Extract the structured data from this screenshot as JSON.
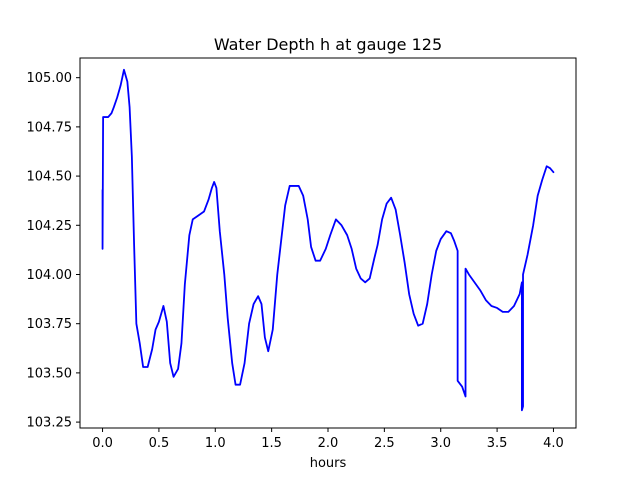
{
  "chart_data": {
    "type": "line",
    "title": "Water Depth h at gauge 125",
    "xlabel": "hours",
    "ylabel": "",
    "xlim": [
      -0.2,
      4.2
    ],
    "ylim": [
      103.22,
      105.1
    ],
    "xticks": [
      0.0,
      0.5,
      1.0,
      1.5,
      2.0,
      2.5,
      3.0,
      3.5,
      4.0
    ],
    "xtick_labels": [
      "0.0",
      "0.5",
      "1.0",
      "1.5",
      "2.0",
      "2.5",
      "3.0",
      "3.5",
      "4.0"
    ],
    "yticks": [
      103.25,
      103.5,
      103.75,
      104.0,
      104.25,
      104.5,
      104.75,
      105.0
    ],
    "ytick_labels": [
      "103.25",
      "103.50",
      "103.75",
      "104.00",
      "104.25",
      "104.50",
      "104.75",
      "105.00"
    ],
    "grid": false,
    "legend": "none",
    "series": [
      {
        "color": "#0000ff",
        "points": [
          [
            0.0,
            104.43
          ],
          [
            0.0,
            104.13
          ],
          [
            0.005,
            104.8
          ],
          [
            0.05,
            104.8
          ],
          [
            0.08,
            104.82
          ],
          [
            0.1,
            104.85
          ],
          [
            0.13,
            104.9
          ],
          [
            0.16,
            104.96
          ],
          [
            0.19,
            105.04
          ],
          [
            0.22,
            104.98
          ],
          [
            0.24,
            104.85
          ],
          [
            0.26,
            104.6
          ],
          [
            0.28,
            104.15
          ],
          [
            0.3,
            103.75
          ],
          [
            0.33,
            103.65
          ],
          [
            0.36,
            103.53
          ],
          [
            0.4,
            103.53
          ],
          [
            0.44,
            103.62
          ],
          [
            0.47,
            103.72
          ],
          [
            0.5,
            103.76
          ],
          [
            0.54,
            103.84
          ],
          [
            0.57,
            103.76
          ],
          [
            0.6,
            103.55
          ],
          [
            0.63,
            103.48
          ],
          [
            0.67,
            103.52
          ],
          [
            0.7,
            103.65
          ],
          [
            0.73,
            103.95
          ],
          [
            0.77,
            104.2
          ],
          [
            0.8,
            104.28
          ],
          [
            0.85,
            104.3
          ],
          [
            0.9,
            104.32
          ],
          [
            0.94,
            104.38
          ],
          [
            0.97,
            104.44
          ],
          [
            0.99,
            104.47
          ],
          [
            1.01,
            104.44
          ],
          [
            1.04,
            104.22
          ],
          [
            1.08,
            104.0
          ],
          [
            1.11,
            103.78
          ],
          [
            1.15,
            103.55
          ],
          [
            1.18,
            103.44
          ],
          [
            1.22,
            103.44
          ],
          [
            1.26,
            103.55
          ],
          [
            1.3,
            103.75
          ],
          [
            1.34,
            103.85
          ],
          [
            1.38,
            103.89
          ],
          [
            1.41,
            103.85
          ],
          [
            1.44,
            103.68
          ],
          [
            1.47,
            103.61
          ],
          [
            1.51,
            103.72
          ],
          [
            1.55,
            104.0
          ],
          [
            1.59,
            104.2
          ],
          [
            1.62,
            104.35
          ],
          [
            1.66,
            104.45
          ],
          [
            1.7,
            104.45
          ],
          [
            1.74,
            104.45
          ],
          [
            1.78,
            104.4
          ],
          [
            1.82,
            104.28
          ],
          [
            1.85,
            104.14
          ],
          [
            1.89,
            104.07
          ],
          [
            1.93,
            104.07
          ],
          [
            1.98,
            104.13
          ],
          [
            2.02,
            104.2
          ],
          [
            2.07,
            104.28
          ],
          [
            2.12,
            104.25
          ],
          [
            2.17,
            104.2
          ],
          [
            2.21,
            104.13
          ],
          [
            2.25,
            104.03
          ],
          [
            2.29,
            103.98
          ],
          [
            2.33,
            103.96
          ],
          [
            2.37,
            103.98
          ],
          [
            2.41,
            104.08
          ],
          [
            2.44,
            104.15
          ],
          [
            2.48,
            104.28
          ],
          [
            2.52,
            104.36
          ],
          [
            2.56,
            104.39
          ],
          [
            2.6,
            104.33
          ],
          [
            2.64,
            104.2
          ],
          [
            2.68,
            104.06
          ],
          [
            2.72,
            103.9
          ],
          [
            2.76,
            103.8
          ],
          [
            2.8,
            103.74
          ],
          [
            2.84,
            103.75
          ],
          [
            2.88,
            103.85
          ],
          [
            2.92,
            104.0
          ],
          [
            2.96,
            104.12
          ],
          [
            3.0,
            104.18
          ],
          [
            3.05,
            104.22
          ],
          [
            3.09,
            104.21
          ],
          [
            3.12,
            104.17
          ],
          [
            3.15,
            104.12
          ],
          [
            3.15,
            103.46
          ],
          [
            3.19,
            103.43
          ],
          [
            3.22,
            103.38
          ],
          [
            3.22,
            104.03
          ],
          [
            3.25,
            104.0
          ],
          [
            3.3,
            103.96
          ],
          [
            3.35,
            103.92
          ],
          [
            3.4,
            103.87
          ],
          [
            3.45,
            103.84
          ],
          [
            3.5,
            103.83
          ],
          [
            3.55,
            103.81
          ],
          [
            3.6,
            103.81
          ],
          [
            3.65,
            103.84
          ],
          [
            3.7,
            103.9
          ],
          [
            3.72,
            103.96
          ],
          [
            3.72,
            103.31
          ],
          [
            3.73,
            103.33
          ],
          [
            3.73,
            104.0
          ],
          [
            3.77,
            104.1
          ],
          [
            3.82,
            104.25
          ],
          [
            3.86,
            104.4
          ],
          [
            3.9,
            104.48
          ],
          [
            3.94,
            104.55
          ],
          [
            3.97,
            104.54
          ],
          [
            4.0,
            104.52
          ]
        ]
      }
    ]
  }
}
